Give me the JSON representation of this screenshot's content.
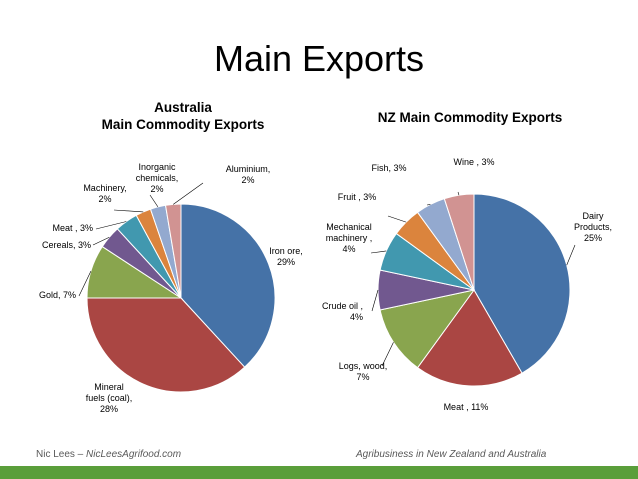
{
  "slide": {
    "title": "Main Exports",
    "footer_author": "Nic Lees – ",
    "footer_site": "NicLeesAgrifood.com",
    "footer_right": "Agribusiness in New Zealand and Australia",
    "accent_bar_color": "#5a9e3a"
  },
  "chart_data": [
    {
      "type": "pie",
      "title": [
        "Australia",
        "Main Commodity Exports"
      ],
      "start": "12 o'clock",
      "direction": "clockwise",
      "slices": [
        {
          "label": [
            "Iron ore,",
            "29%"
          ],
          "value": 29,
          "color": "#4572a7"
        },
        {
          "label": [
            "Mineral",
            "fuels (coal),",
            "28%"
          ],
          "value": 28,
          "color": "#aa4643"
        },
        {
          "label": [
            "Gold, 7%"
          ],
          "value": 7,
          "color": "#89a54e"
        },
        {
          "label": [
            "Cereals, 3%"
          ],
          "value": 3,
          "color": "#71588f"
        },
        {
          "label": [
            "Meat , 3%"
          ],
          "value": 3,
          "color": "#4198af"
        },
        {
          "label": [
            "Machinery,",
            "2%"
          ],
          "value": 2,
          "color": "#db843d"
        },
        {
          "label": [
            "Inorganic",
            "chemicals,",
            "2%"
          ],
          "value": 2,
          "color": "#93a9cf"
        },
        {
          "label": [
            "Aluminium,",
            "2%"
          ],
          "value": 2,
          "color": "#d19392"
        }
      ]
    },
    {
      "type": "pie",
      "title": [
        "NZ Main Commodity Exports"
      ],
      "start": "12 o'clock",
      "direction": "clockwise",
      "slices": [
        {
          "label": [
            "Dairy",
            "Products,",
            "25%"
          ],
          "value": 25,
          "color": "#4572a7"
        },
        {
          "label": [
            "Meat , 11%"
          ],
          "value": 11,
          "color": "#aa4643"
        },
        {
          "label": [
            "Logs, wood,",
            "7%"
          ],
          "value": 7,
          "color": "#89a54e"
        },
        {
          "label": [
            "Crude oil ,",
            "4%"
          ],
          "value": 4,
          "color": "#71588f"
        },
        {
          "label": [
            "Mechanical",
            "machinery ,",
            "4%"
          ],
          "value": 4,
          "color": "#4198af"
        },
        {
          "label": [
            "Fruit , 3%"
          ],
          "value": 3,
          "color": "#db843d"
        },
        {
          "label": [
            "Fish, 3%"
          ],
          "value": 3,
          "color": "#93a9cf"
        },
        {
          "label": [
            "Wine , 3%"
          ],
          "value": 3,
          "color": "#d19392"
        }
      ]
    }
  ]
}
